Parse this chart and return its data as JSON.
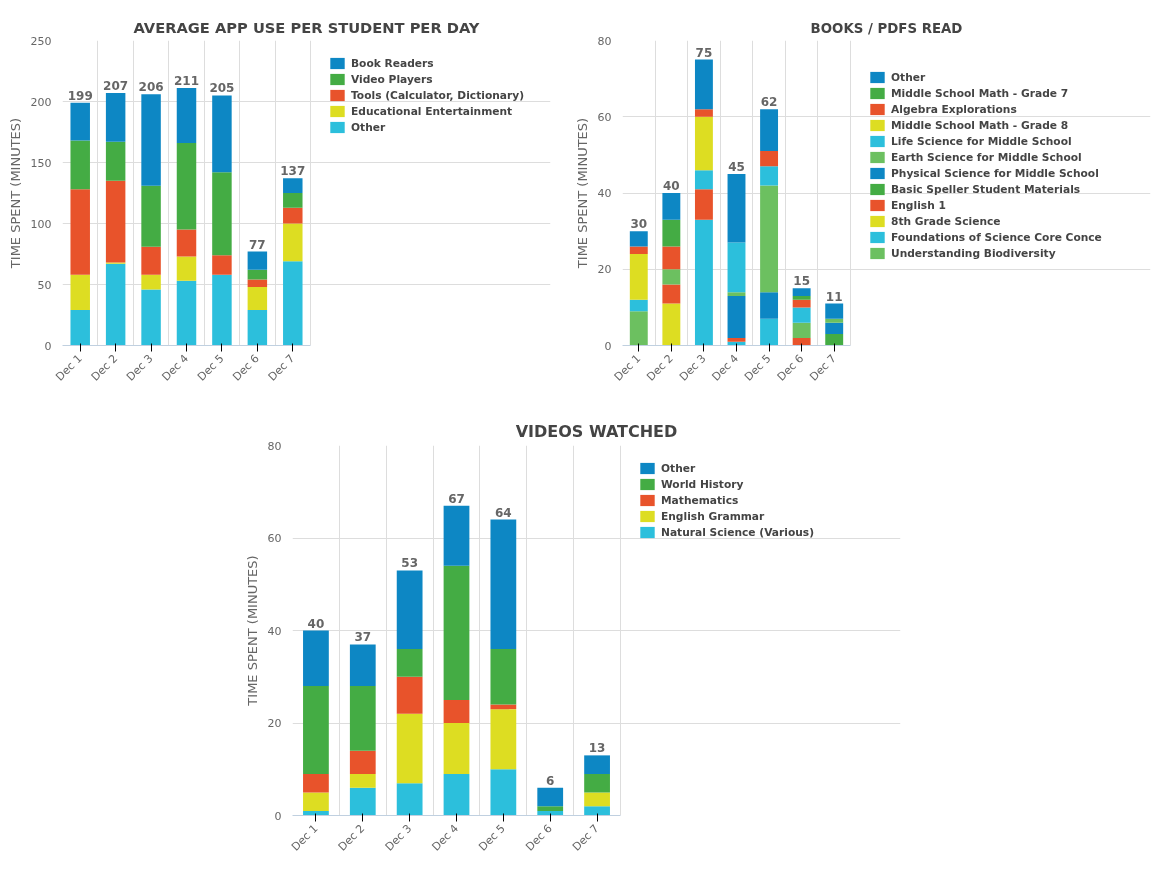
{
  "chart_data": [
    {
      "type": "bar",
      "stacked": true,
      "title": "AVERAGE APP USE PER STUDENT PER DAY",
      "ylabel": "TIME SPENT (MINUTES)",
      "categories": [
        "Dec 1",
        "Dec 2",
        "Dec 3",
        "Dec 4",
        "Dec 5",
        "Dec 6",
        "Dec 7"
      ],
      "ylim": [
        0,
        250
      ],
      "yticks": [
        0,
        50,
        100,
        150,
        200,
        250
      ],
      "grid": true,
      "legend": "right",
      "totals": [
        "199",
        "207",
        "206",
        "211",
        "205",
        "77",
        "137"
      ],
      "series": [
        {
          "name": "Other",
          "color": "#2cbfdc",
          "values": [
            29,
            67,
            46,
            53,
            58,
            29,
            69
          ]
        },
        {
          "name": "Educational Entertainment",
          "color": "#dddd22",
          "values": [
            29,
            1,
            12,
            20,
            0,
            19,
            31
          ]
        },
        {
          "name": "Tools (Calculator, Dictionary)",
          "color": "#e8532b",
          "values": [
            70,
            67,
            23,
            22,
            16,
            6,
            13
          ]
        },
        {
          "name": "Video Players",
          "color": "#44ac44",
          "values": [
            40,
            32,
            50,
            71,
            68,
            8,
            12
          ]
        },
        {
          "name": "Book Readers",
          "color": "#0d87c4",
          "values": [
            31,
            40,
            75,
            45,
            63,
            15,
            12
          ]
        }
      ]
    },
    {
      "type": "bar",
      "stacked": true,
      "title": "BOOKS / PDFS READ",
      "ylabel": "TIME SPENT (MINUTES)",
      "categories": [
        "Dec 1",
        "Dec 2",
        "Dec 3",
        "Dec 4",
        "Dec 5",
        "Dec 6",
        "Dec 7"
      ],
      "ylim": [
        0,
        80
      ],
      "yticks": [
        0,
        20,
        40,
        60,
        80
      ],
      "grid": true,
      "legend": "right",
      "totals": [
        "30",
        "40",
        "75",
        "45",
        "62",
        "15",
        "11"
      ],
      "series": [
        {
          "name": "Understanding Biodiversity",
          "color": "#6cc060",
          "values": [
            9,
            0,
            0,
            0,
            0,
            0,
            0
          ]
        },
        {
          "name": "Foundations of Science Core Conce",
          "color": "#2cbfdc",
          "values": [
            3,
            0,
            33,
            1,
            7,
            0,
            0
          ]
        },
        {
          "name": "8th Grade Science",
          "color": "#dddd22",
          "values": [
            12,
            11,
            0,
            0,
            0,
            0,
            0
          ]
        },
        {
          "name": "English 1",
          "color": "#e8532b",
          "values": [
            2,
            5,
            8,
            1,
            0,
            2,
            0
          ]
        },
        {
          "name": "Basic Speller Student Materials",
          "color": "#44ac44",
          "values": [
            0,
            0,
            0,
            0,
            0,
            0,
            3
          ]
        },
        {
          "name": "Physical Science for Middle School",
          "color": "#0d87c4",
          "values": [
            0,
            0,
            0,
            11,
            7,
            0,
            3
          ]
        },
        {
          "name": "Earth Science for Middle School",
          "color": "#6cc060",
          "values": [
            0,
            4,
            0,
            1,
            28,
            4,
            1
          ]
        },
        {
          "name": "Life Science for Middle School",
          "color": "#2cbfdc",
          "values": [
            0,
            0,
            5,
            13,
            5,
            4,
            0
          ]
        },
        {
          "name": "Middle School Math - Grade 8",
          "color": "#dddd22",
          "values": [
            0,
            0,
            14,
            0,
            0,
            0,
            0
          ]
        },
        {
          "name": "Algebra Explorations",
          "color": "#e8532b",
          "values": [
            0,
            6,
            2,
            0,
            4,
            2,
            0
          ]
        },
        {
          "name": "Middle School Math - Grade 7",
          "color": "#44ac44",
          "values": [
            0,
            7,
            0,
            0,
            0,
            1,
            0
          ]
        },
        {
          "name": "Other",
          "color": "#0d87c4",
          "values": [
            4,
            7,
            13,
            18,
            11,
            2,
            4
          ]
        }
      ]
    },
    {
      "type": "bar",
      "stacked": true,
      "title": "VIDEOS WATCHED",
      "ylabel": "TIME SPENT (MINUTES)",
      "categories": [
        "Dec 1",
        "Dec 2",
        "Dec 3",
        "Dec 4",
        "Dec 5",
        "Dec 6",
        "Dec 7"
      ],
      "ylim": [
        0,
        80
      ],
      "yticks": [
        0,
        20,
        40,
        60,
        80
      ],
      "grid": true,
      "legend": "right",
      "totals": [
        "40",
        "37",
        "53",
        "67",
        "64",
        "6",
        "13"
      ],
      "series": [
        {
          "name": "Natural Science (Various)",
          "color": "#2cbfdc",
          "values": [
            1,
            6,
            7,
            9,
            10,
            1,
            2
          ]
        },
        {
          "name": "English Grammar",
          "color": "#dddd22",
          "values": [
            4,
            3,
            15,
            11,
            13,
            0,
            3
          ]
        },
        {
          "name": "Mathematics",
          "color": "#e8532b",
          "values": [
            4,
            5,
            8,
            5,
            1,
            0,
            0
          ]
        },
        {
          "name": "World History",
          "color": "#44ac44",
          "values": [
            19,
            14,
            6,
            29,
            12,
            1,
            4
          ]
        },
        {
          "name": "Other",
          "color": "#0d87c4",
          "values": [
            12,
            9,
            17,
            13,
            28,
            4,
            4
          ]
        }
      ]
    }
  ]
}
